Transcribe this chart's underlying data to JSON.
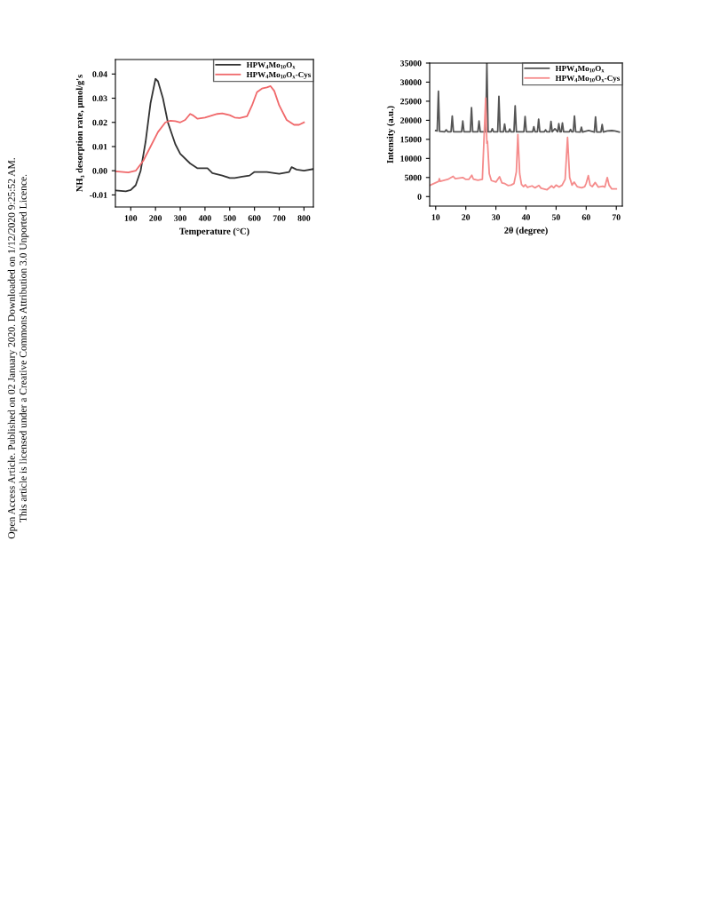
{
  "chart_data": [
    {
      "type": "line",
      "xlabel": "Temperature (°C)",
      "ylabel": "NH₃ desorption rate, μmol/g's",
      "xlim": [
        38,
        838
      ],
      "xticks": [
        100,
        200,
        300,
        400,
        500,
        600,
        700,
        800
      ],
      "ylim": [
        -0.015,
        0.046
      ],
      "yticks": [
        {
          "value": -0.01,
          "label": "-0.01"
        },
        {
          "value": 0.0,
          "label": "0.00"
        },
        {
          "value": 0.01,
          "label": "0.01"
        },
        {
          "value": 0.02,
          "label": "0.02"
        },
        {
          "value": 0.03,
          "label": "0.03"
        },
        {
          "value": 0.04,
          "label": "0.04"
        }
      ],
      "grid": false,
      "legend": "top right",
      "marker": "none",
      "line_style": "solid",
      "annotations": [
        "Open Access Article. Published on 02 January 2020. Downloaded on 1/12/2020 9:25:52 AM.",
        "This article is licensed under a Creative Commons Attribution 3.0 Unported Licence."
      ],
      "series": [
        {
          "name": "HPW$_{4}$Mo$_{10}$O$_{x}$",
          "color": "#333333",
          "x": [
            40,
            80,
            100,
            120,
            140,
            160,
            180,
            200,
            210,
            230,
            250,
            280,
            300,
            340,
            370,
            400,
            410,
            430,
            470,
            500,
            520,
            550,
            580,
            600,
            620,
            650,
            680,
            700,
            740,
            750,
            770,
            800,
            838
          ],
          "values": [
            -0.0082,
            -0.0085,
            -0.008,
            -0.006,
            0.0,
            0.012,
            0.028,
            0.038,
            0.037,
            0.03,
            0.02,
            0.011,
            0.007,
            0.003,
            0.001,
            0.001,
            0.001,
            -0.001,
            -0.002,
            -0.003,
            -0.003,
            -0.0025,
            -0.002,
            -0.0005,
            -0.0005,
            -0.0005,
            -0.001,
            -0.0013,
            -0.0005,
            0.0015,
            0.0005,
            0.0,
            0.0007
          ]
        },
        {
          "name": "HPW$_{4}$Mo$_{10}$O$_{x}$-Cys",
          "color": "#f0696b",
          "x": [
            40,
            90,
            120,
            150,
            180,
            210,
            240,
            260,
            280,
            300,
            320,
            340,
            350,
            370,
            400,
            450,
            470,
            500,
            520,
            540,
            570,
            590,
            610,
            630,
            650,
            665,
            680,
            700,
            730,
            760,
            780,
            800
          ],
          "values": [
            -0.0003,
            -0.0007,
            0.0,
            0.004,
            0.01,
            0.016,
            0.02,
            0.0207,
            0.0205,
            0.02,
            0.021,
            0.0235,
            0.023,
            0.0215,
            0.022,
            0.0235,
            0.0237,
            0.023,
            0.022,
            0.0218,
            0.0225,
            0.027,
            0.0325,
            0.034,
            0.0345,
            0.035,
            0.033,
            0.027,
            0.021,
            0.019,
            0.019,
            0.02
          ]
        }
      ]
    },
    {
      "type": "line",
      "xlabel": "2θ (degree)",
      "ylabel": "Intensity (a.u.)",
      "xlim": [
        8,
        72
      ],
      "xticks": [
        10,
        20,
        30,
        40,
        50,
        60,
        70
      ],
      "ylim": [
        -2500,
        35000
      ],
      "yticks": [
        0,
        5000,
        10000,
        15000,
        20000,
        25000,
        30000,
        35000
      ],
      "grid": false,
      "legend": "top right",
      "marker": "none",
      "line_style": "solid",
      "series": [
        {
          "name": "HPW$_{4}$Mo$_{10}$O$_{x}$",
          "color": "#555555",
          "x": [
            10,
            10.5,
            10.9,
            11.3,
            13,
            13.5,
            14,
            15.1,
            15.5,
            15.9,
            18.6,
            19,
            19.4,
            21.5,
            21.9,
            22.3,
            24,
            24.4,
            24.8,
            26.6,
            27,
            27.4,
            28.4,
            28.8,
            29.2,
            30.6,
            31,
            31.4,
            32.5,
            32.9,
            33.3,
            34.2,
            34.6,
            35,
            36,
            36.4,
            36.8,
            39.3,
            39.7,
            40.1,
            42.2,
            42.6,
            43,
            43.8,
            44.2,
            44.6,
            46.1,
            46.5,
            46.9,
            47.9,
            48.3,
            48.7,
            49.6,
            50.5,
            50.9,
            51.3,
            51.7,
            52.1,
            52.5,
            54.4,
            54.8,
            55.2,
            55.7,
            56.1,
            56.5,
            58,
            58.4,
            58.8,
            60.8,
            62.7,
            63.1,
            63.5,
            64.9,
            65.3,
            65.7,
            67,
            68.5,
            69.5,
            71
          ],
          "values": [
            17300,
            17200,
            27600,
            17100,
            17000,
            17500,
            17000,
            17000,
            21100,
            17000,
            17000,
            19800,
            17000,
            17000,
            23300,
            17000,
            17000,
            19800,
            17000,
            17000,
            35000,
            17000,
            17000,
            17800,
            17000,
            17000,
            26300,
            17000,
            17000,
            19000,
            17000,
            17000,
            17700,
            17000,
            17000,
            23800,
            17000,
            17000,
            21000,
            17000,
            17000,
            18300,
            17000,
            17000,
            20300,
            17000,
            17000,
            17500,
            17000,
            17000,
            19700,
            17000,
            17800,
            17000,
            19100,
            17000,
            17000,
            19300,
            17000,
            17000,
            17600,
            17000,
            17000,
            21100,
            17000,
            16900,
            18200,
            16900,
            17300,
            16900,
            20900,
            16900,
            16900,
            18900,
            16900,
            17200,
            17300,
            17200,
            16900
          ]
        },
        {
          "name": "HPW$_{4}$Mo$_{10}$O$_{x}$-Cys",
          "color": "#f58c8c",
          "x": [
            8,
            11,
            11.2,
            11.5,
            14,
            15.8,
            16.5,
            19,
            20,
            21,
            22,
            22.5,
            24,
            25.5,
            26.3,
            26.6,
            27,
            27.2,
            27.8,
            28.5,
            30,
            31.2,
            32,
            33,
            34,
            35,
            36,
            36.8,
            37.3,
            37.9,
            38.5,
            39.2,
            39.8,
            40.5,
            42,
            43,
            44.3,
            45,
            47,
            48.5,
            49.2,
            50,
            51,
            52,
            53,
            53.8,
            54.5,
            55.3,
            56,
            57,
            58.5,
            59.5,
            60,
            60.7,
            61.3,
            62,
            63,
            64,
            65.5,
            66.2,
            67,
            67.6,
            68.5,
            70
          ],
          "values": [
            2900,
            4000,
            4700,
            4000,
            4500,
            5300,
            4700,
            5000,
            4500,
            4500,
            5600,
            4600,
            4300,
            4500,
            20000,
            25800,
            14000,
            14500,
            6000,
            4200,
            3800,
            5200,
            3600,
            3400,
            2900,
            3000,
            3400,
            6500,
            16300,
            6000,
            3200,
            2600,
            3100,
            2400,
            2800,
            2300,
            2900,
            2200,
            1800,
            2800,
            2300,
            3000,
            2500,
            3000,
            4500,
            15500,
            5000,
            3000,
            3800,
            2600,
            2300,
            2600,
            3500,
            5500,
            3000,
            2600,
            3700,
            2500,
            2700,
            2500,
            5000,
            3000,
            2000,
            2000
          ]
        }
      ]
    }
  ]
}
